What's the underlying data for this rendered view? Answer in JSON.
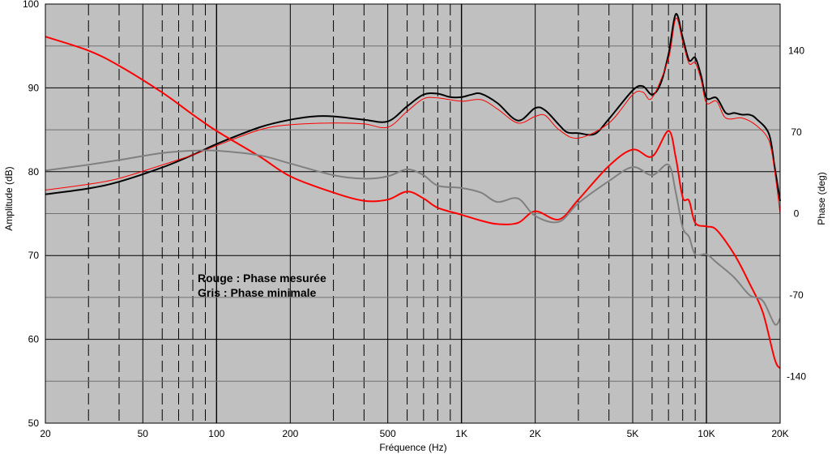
{
  "chart_data": {
    "type": "line",
    "xlabel": "Fréquence (Hz)",
    "ylabel_left": "Amplitude (dB)",
    "ylabel_right": "Phase (deg)",
    "x_scale": "log",
    "xlim": [
      20,
      20000
    ],
    "ylim_left": [
      50,
      100
    ],
    "ylim_right": [
      -180,
      180
    ],
    "x_ticks": [
      {
        "value": 20,
        "label": "20"
      },
      {
        "value": 50,
        "label": "50"
      },
      {
        "value": 100,
        "label": "100"
      },
      {
        "value": 200,
        "label": "200"
      },
      {
        "value": 500,
        "label": "500"
      },
      {
        "value": 1000,
        "label": "1K"
      },
      {
        "value": 2000,
        "label": "2K"
      },
      {
        "value": 5000,
        "label": "5K"
      },
      {
        "value": 10000,
        "label": "10K"
      },
      {
        "value": 20000,
        "label": "20K"
      }
    ],
    "y_ticks_left": [
      "50",
      "60",
      "70",
      "80",
      "90",
      "100"
    ],
    "y_ticks_right": [
      "-140",
      "-70",
      "0",
      "70",
      "140"
    ],
    "grid": true,
    "colors": {
      "plot_bg": "#c0c0c0",
      "amplitude_black": "#000000",
      "amplitude_red": "#ff0000",
      "phase_red": "#ff0000",
      "phase_gray": "#808080"
    },
    "annotation_lines": [
      "Rouge : Phase mesurée",
      "Gris : Phase minimale"
    ],
    "series": [
      {
        "axis": "left",
        "color": "#000000",
        "width": 2,
        "points": [
          [
            20,
            77.3
          ],
          [
            30,
            78
          ],
          [
            40,
            78.8
          ],
          [
            60,
            80.5
          ],
          [
            80,
            82
          ],
          [
            100,
            83.3
          ],
          [
            150,
            85.3
          ],
          [
            200,
            86.2
          ],
          [
            250,
            86.6
          ],
          [
            300,
            86.6
          ],
          [
            400,
            86.2
          ],
          [
            500,
            86
          ],
          [
            600,
            87.8
          ],
          [
            700,
            89.2
          ],
          [
            800,
            89.3
          ],
          [
            900,
            88.9
          ],
          [
            1000,
            88.9
          ],
          [
            1100,
            89.2
          ],
          [
            1200,
            89.3
          ],
          [
            1400,
            88.2
          ],
          [
            1700,
            86.1
          ],
          [
            2000,
            87.6
          ],
          [
            2200,
            87.3
          ],
          [
            2500,
            85.6
          ],
          [
            2700,
            84.7
          ],
          [
            3000,
            84.6
          ],
          [
            3500,
            84.5
          ],
          [
            4000,
            86.3
          ],
          [
            5000,
            89.7
          ],
          [
            5500,
            90.2
          ],
          [
            6000,
            89.2
          ],
          [
            6500,
            90.5
          ],
          [
            7000,
            94
          ],
          [
            7500,
            98.8
          ],
          [
            8000,
            96
          ],
          [
            8500,
            93.3
          ],
          [
            9000,
            93.6
          ],
          [
            9500,
            91.5
          ],
          [
            10000,
            88.8
          ],
          [
            11000,
            88.8
          ],
          [
            12000,
            87
          ],
          [
            13000,
            87
          ],
          [
            14000,
            86.8
          ],
          [
            15000,
            86.8
          ],
          [
            16000,
            86.3
          ],
          [
            18000,
            84.5
          ],
          [
            19000,
            80.5
          ],
          [
            20000,
            76.5
          ]
        ]
      },
      {
        "axis": "left",
        "color": "#ff0000",
        "width": 1,
        "points": [
          [
            20,
            77.8
          ],
          [
            30,
            78.5
          ],
          [
            40,
            79.2
          ],
          [
            60,
            80.8
          ],
          [
            80,
            82
          ],
          [
            100,
            83.1
          ],
          [
            150,
            85
          ],
          [
            200,
            85.6
          ],
          [
            300,
            85.8
          ],
          [
            400,
            85.7
          ],
          [
            500,
            85.3
          ],
          [
            600,
            87.2
          ],
          [
            700,
            88.7
          ],
          [
            800,
            88.8
          ],
          [
            1000,
            88.4
          ],
          [
            1200,
            88.6
          ],
          [
            1400,
            87.5
          ],
          [
            1700,
            85.8
          ],
          [
            2000,
            86.6
          ],
          [
            2200,
            86.7
          ],
          [
            2500,
            85
          ],
          [
            3000,
            84
          ],
          [
            4000,
            85.8
          ],
          [
            5000,
            89.2
          ],
          [
            5500,
            89.5
          ],
          [
            6000,
            88.8
          ],
          [
            7000,
            93.5
          ],
          [
            7500,
            98.3
          ],
          [
            8000,
            95.5
          ],
          [
            8500,
            92.9
          ],
          [
            9000,
            93
          ],
          [
            9500,
            91
          ],
          [
            10000,
            88.2
          ],
          [
            11000,
            88.4
          ],
          [
            12000,
            86.4
          ],
          [
            14000,
            86.4
          ],
          [
            16000,
            85.5
          ],
          [
            18000,
            83.7
          ],
          [
            19000,
            80
          ],
          [
            20000,
            75
          ]
        ]
      },
      {
        "axis": "right",
        "color": "#ff0000",
        "width": 2,
        "points": [
          [
            20,
            152
          ],
          [
            30,
            140
          ],
          [
            40,
            127
          ],
          [
            60,
            104
          ],
          [
            80,
            85
          ],
          [
            100,
            71
          ],
          [
            150,
            49
          ],
          [
            200,
            32
          ],
          [
            300,
            18
          ],
          [
            400,
            11
          ],
          [
            500,
            12
          ],
          [
            600,
            19
          ],
          [
            700,
            13
          ],
          [
            800,
            5
          ],
          [
            1000,
            -1
          ],
          [
            1200,
            -6
          ],
          [
            1400,
            -9
          ],
          [
            1700,
            -8
          ],
          [
            2000,
            2
          ],
          [
            2500,
            -5
          ],
          [
            3000,
            12
          ],
          [
            4000,
            41
          ],
          [
            5000,
            55
          ],
          [
            6000,
            49
          ],
          [
            7000,
            71
          ],
          [
            7500,
            48
          ],
          [
            8000,
            14
          ],
          [
            8500,
            11
          ],
          [
            9000,
            -8
          ],
          [
            10000,
            -11
          ],
          [
            11000,
            -14
          ],
          [
            13000,
            -35
          ],
          [
            15000,
            -60
          ],
          [
            17000,
            -85
          ],
          [
            19000,
            -125
          ],
          [
            20000,
            -133
          ]
        ]
      },
      {
        "axis": "right",
        "color": "#808080",
        "width": 2,
        "points": [
          [
            20,
            37
          ],
          [
            30,
            42
          ],
          [
            40,
            46
          ],
          [
            60,
            52
          ],
          [
            80,
            54
          ],
          [
            100,
            54
          ],
          [
            150,
            50
          ],
          [
            200,
            43
          ],
          [
            300,
            33
          ],
          [
            400,
            30
          ],
          [
            500,
            32
          ],
          [
            600,
            38
          ],
          [
            700,
            33
          ],
          [
            800,
            24
          ],
          [
            1000,
            22
          ],
          [
            1200,
            18
          ],
          [
            1400,
            10
          ],
          [
            1700,
            13
          ],
          [
            2000,
            -2
          ],
          [
            2500,
            -7
          ],
          [
            3000,
            9
          ],
          [
            4000,
            28
          ],
          [
            5000,
            40
          ],
          [
            6000,
            33
          ],
          [
            7000,
            42
          ],
          [
            7500,
            18
          ],
          [
            8000,
            -12
          ],
          [
            8500,
            -20
          ],
          [
            9000,
            -35
          ],
          [
            10000,
            -35
          ],
          [
            11000,
            -42
          ],
          [
            13000,
            -55
          ],
          [
            15000,
            -70
          ],
          [
            17000,
            -75
          ],
          [
            19000,
            -95
          ],
          [
            20000,
            -90
          ]
        ]
      }
    ]
  }
}
